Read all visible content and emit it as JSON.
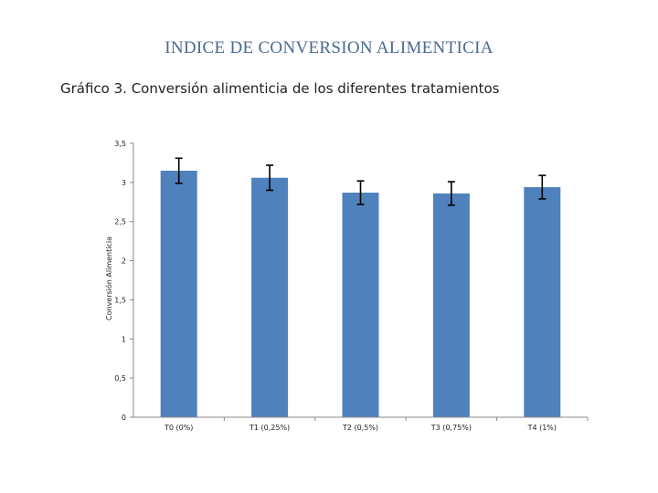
{
  "slide": {
    "title": "INDICE DE CONVERSION ALIMENTICIA"
  },
  "chart_data": {
    "type": "bar",
    "title": "Gráfico 3. Conversión alimenticia de los diferentes tratamientos",
    "xlabel": "",
    "ylabel": "Conversión Alimenticia",
    "categories": [
      "T0 (0%)",
      "T1 (0,25%)",
      "T2 (0,5%)",
      "T3 (0,75%)",
      "T4 (1%)"
    ],
    "series": [
      {
        "values": [
          3.15,
          3.06,
          2.87,
          2.86,
          2.94
        ],
        "error": [
          0.16,
          0.16,
          0.15,
          0.15,
          0.15
        ],
        "color": "#4f81bd"
      }
    ],
    "ylim": [
      0,
      3.5
    ],
    "yticks": [
      "0",
      "0,5",
      "1",
      "1,5",
      "2",
      "2,5",
      "3",
      "3,5"
    ],
    "grid": false,
    "legend": "none"
  }
}
